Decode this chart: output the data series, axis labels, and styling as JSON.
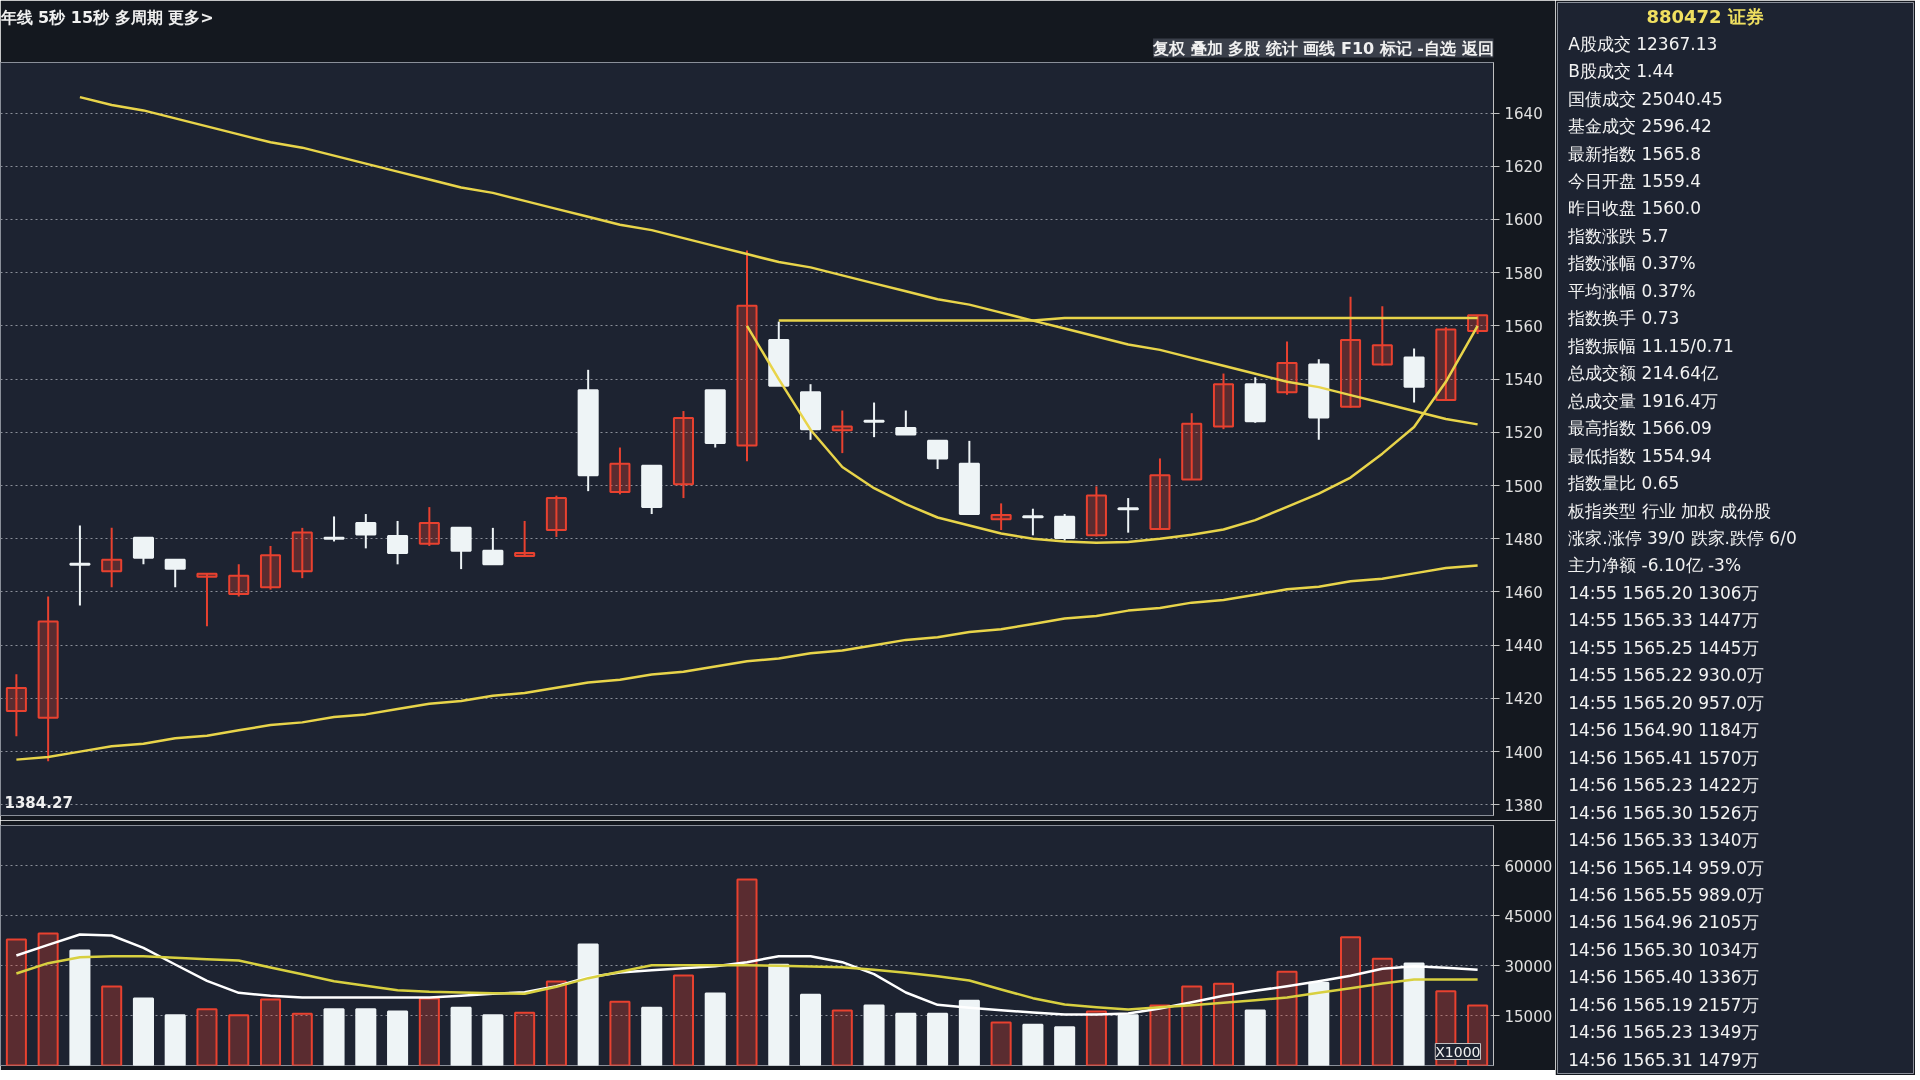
{
  "chart_data": [
    {
      "type": "candlestick",
      "annotations": [
        "年线 5秒 15秒 多周期 更多>",
        "复权 叠加 多股 统计 画线 F10 标记 -自选 返回",
        "1384.27"
      ],
      "categories": [
        null,
        null,
        null,
        null,
        null,
        null,
        null,
        null,
        null,
        null,
        null,
        null,
        null,
        null,
        null,
        null,
        null,
        null,
        null,
        null,
        null,
        null,
        null,
        null,
        null,
        null,
        null,
        null,
        null,
        null,
        null,
        null,
        null,
        null,
        null,
        null,
        null,
        null,
        null,
        null,
        null,
        null,
        null,
        null,
        null,
        null,
        null
      ],
      "ohlc": [
        [
          1415.3,
          1429.1,
          1405.8,
          1423.9
        ],
        [
          1412.7,
          1458.3,
          1396.4,
          1448.9
        ],
        [
          1470.6,
          1485.0,
          1454.9,
          1470.2
        ],
        [
          1467.8,
          1484.1,
          1461.8,
          1472.1
        ],
        [
          1480.4,
          1480.4,
          1470.4,
          1472.9
        ],
        [
          1472.1,
          1472.1,
          1461.8,
          1468.7
        ],
        [
          1465.7,
          1466.9,
          1447.1,
          1466.9
        ],
        [
          1459.2,
          1470.4,
          1458.3,
          1466.1
        ],
        [
          1461.8,
          1477.3,
          1460.9,
          1473.8
        ],
        [
          1467.8,
          1484.1,
          1465.2,
          1482.4
        ],
        [
          1480.4,
          1488.4,
          1479.0,
          1480.0
        ],
        [
          1485.9,
          1489.3,
          1476.4,
          1481.6
        ],
        [
          1481.0,
          1486.7,
          1470.4,
          1474.7
        ],
        [
          1478.1,
          1491.9,
          1477.3,
          1485.9
        ],
        [
          1484.1,
          1484.1,
          1468.6,
          1475.5
        ],
        [
          1475.5,
          1484.1,
          1470.4,
          1470.4
        ],
        [
          1473.5,
          1486.7,
          1473.5,
          1474.7
        ],
        [
          1483.3,
          1496.2,
          1480.7,
          1495.3
        ],
        [
          1535.8,
          1543.5,
          1497.9,
          1503.9
        ],
        [
          1497.6,
          1514.3,
          1496.7,
          1508.2
        ],
        [
          1507.4,
          1507.4,
          1489.3,
          1491.9
        ],
        [
          1500.5,
          1528.0,
          1495.3,
          1525.4
        ],
        [
          1535.8,
          1535.8,
          1514.3,
          1516.0
        ],
        [
          1515.1,
          1588.3,
          1509.1,
          1567.6
        ],
        [
          1554.7,
          1561.6,
          1537.5,
          1537.5
        ],
        [
          1535.1,
          1538.1,
          1517.2,
          1521.2
        ],
        [
          1520.8,
          1528.2,
          1512.2,
          1522.2
        ],
        [
          1524.4,
          1531.2,
          1518.2,
          1524.0
        ],
        [
          1521.6,
          1528.2,
          1519.2,
          1519.2
        ],
        [
          1516.8,
          1516.8,
          1506.2,
          1510.2
        ],
        [
          1508.2,
          1516.8,
          1489.3,
          1489.3
        ],
        [
          1487.3,
          1493.3,
          1483.3,
          1488.9
        ],
        [
          1488.5,
          1491.3,
          1481.3,
          1488.1
        ],
        [
          1488.3,
          1489.3,
          1479.3,
          1480.3
        ],
        [
          1481.3,
          1499.7,
          1480.9,
          1496.3
        ],
        [
          1491.5,
          1495.3,
          1482.3,
          1491.1
        ],
        [
          1483.7,
          1510.2,
          1483.3,
          1503.9
        ],
        [
          1502.3,
          1527.2,
          1502.3,
          1523.2
        ],
        [
          1522.2,
          1542.1,
          1521.2,
          1538.1
        ],
        [
          1538.1,
          1540.7,
          1523.6,
          1524.2
        ],
        [
          1535.1,
          1554.1,
          1534.1,
          1546.1
        ],
        [
          1545.5,
          1547.5,
          1517.2,
          1525.6
        ],
        [
          1529.6,
          1571.0,
          1529.2,
          1554.7
        ],
        [
          1545.5,
          1567.4,
          1545.1,
          1552.7
        ],
        [
          1548.1,
          1551.5,
          1531.2,
          1537.1
        ],
        [
          1532.2,
          1559.5,
          1532.2,
          1558.7
        ],
        [
          1558.1,
          1564.0,
          1557.0,
          1564.0
        ]
      ],
      "colors": [
        "#e8412f",
        "#e8412f",
        "#eef4f6",
        "#e8412f",
        "#eef4f6",
        "#eef4f6",
        "#e8412f",
        "#e8412f",
        "#e8412f",
        "#e8412f",
        "#eef4f6",
        "#eef4f6",
        "#eef4f6",
        "#e8412f",
        "#eef4f6",
        "#eef4f6",
        "#e8412f",
        "#e8412f",
        "#eef4f6",
        "#e8412f",
        "#eef4f6",
        "#e8412f",
        "#eef4f6",
        "#e8412f",
        "#eef4f6",
        "#eef4f6",
        "#e8412f",
        "#eef4f6",
        "#eef4f6",
        "#eef4f6",
        "#eef4f6",
        "#e8412f",
        "#eef4f6",
        "#eef4f6",
        "#e8412f",
        "#eef4f6",
        "#e8412f",
        "#e8412f",
        "#e8412f",
        "#eef4f6",
        "#e8412f",
        "#eef4f6",
        "#e8412f",
        "#e8412f",
        "#eef4f6",
        "#e8412f",
        "#e8412f"
      ],
      "series": [
        {
          "type": "line",
          "color": "#e8d44a",
          "values": [
            null,
            null,
            1646,
            1643,
            1641,
            1638,
            1635,
            1632,
            1629,
            1627,
            1624,
            1621,
            1618,
            1615,
            1612,
            1610,
            1607,
            1604,
            1601,
            1598,
            1596,
            1593,
            1590,
            1587,
            1584,
            1582,
            1579,
            1576,
            1573,
            1570,
            1568,
            1565,
            1562,
            1559,
            1556,
            1553,
            1551,
            1548,
            1545,
            1542,
            1539,
            1537,
            1534,
            1531,
            1528,
            1525,
            1523
          ]
        },
        {
          "type": "line",
          "color": "#e8d44a",
          "values": [
            1397,
            1398,
            1400,
            1402,
            1403,
            1405,
            1406,
            1408,
            1410,
            1411,
            1413,
            1414,
            1416,
            1418,
            1419,
            1421,
            1422,
            1424,
            1426,
            1427,
            1429,
            1430,
            1432,
            1434,
            1435,
            1437,
            1438,
            1440,
            1442,
            1443,
            1445,
            1446,
            1448,
            1450,
            1451,
            1453,
            1454,
            1456,
            1457,
            1459,
            1461,
            1462,
            1464,
            1465,
            1467,
            1469,
            1470
          ]
        },
        {
          "type": "line",
          "color": "#e8d44a",
          "values": [
            null,
            null,
            null,
            null,
            null,
            null,
            null,
            null,
            null,
            null,
            null,
            null,
            null,
            null,
            null,
            null,
            null,
            null,
            null,
            null,
            null,
            null,
            null,
            null,
            1562,
            1562,
            1562,
            1562,
            1562,
            1562,
            1562,
            1562,
            1562,
            1563,
            1563,
            1563,
            1563,
            1563,
            1563,
            1563,
            1563,
            1563,
            1563,
            1563,
            1563,
            1563,
            1563
          ]
        },
        {
          "type": "line",
          "color": "#e8d44a",
          "values": [
            null,
            null,
            null,
            null,
            null,
            null,
            null,
            null,
            null,
            null,
            null,
            null,
            null,
            null,
            null,
            null,
            null,
            null,
            null,
            null,
            null,
            null,
            null,
            1560,
            1540,
            1521,
            1507,
            1499,
            1493,
            1488,
            1485,
            1482,
            1480,
            1479,
            1478.5,
            1478.8,
            1480,
            1481.5,
            1483.5,
            1487,
            1492,
            1497,
            1503,
            1512,
            1522,
            1539,
            1560
          ]
        }
      ],
      "ylim": [
        1376,
        1659
      ],
      "yticks": [
        1380,
        1400,
        1420,
        1440,
        1460,
        1480,
        1500,
        1520,
        1540,
        1560,
        1580,
        1600,
        1620,
        1640
      ],
      "grid": "y"
    },
    {
      "type": "bar",
      "annotations": [
        "X1000"
      ],
      "categories": [
        null,
        null,
        null,
        null,
        null,
        null,
        null,
        null,
        null,
        null,
        null,
        null,
        null,
        null,
        null,
        null,
        null,
        null,
        null,
        null,
        null,
        null,
        null,
        null,
        null,
        null,
        null,
        null,
        null,
        null,
        null,
        null,
        null,
        null,
        null,
        null,
        null,
        null,
        null,
        null,
        null,
        null,
        null,
        null,
        null,
        null,
        null
      ],
      "series": [
        {
          "type": "bar",
          "values": [
            37800,
            39600,
            34500,
            23700,
            20100,
            15100,
            16900,
            15100,
            19800,
            15500,
            16900,
            16900,
            16200,
            20100,
            17300,
            15100,
            15800,
            25200,
            36300,
            19100,
            17300,
            27000,
            21600,
            55800,
            30200,
            21200,
            16500,
            18000,
            15500,
            15500,
            19400,
            12900,
            12200,
            11500,
            16200,
            15100,
            18000,
            23700,
            24500,
            16500,
            28100,
            24800,
            38500,
            32000,
            30600,
            22300,
            18000
          ],
          "colors": [
            "#e8412f",
            "#e8412f",
            "#eef4f6",
            "#e8412f",
            "#eef4f6",
            "#eef4f6",
            "#e8412f",
            "#e8412f",
            "#e8412f",
            "#e8412f",
            "#eef4f6",
            "#eef4f6",
            "#eef4f6",
            "#e8412f",
            "#eef4f6",
            "#eef4f6",
            "#e8412f",
            "#e8412f",
            "#eef4f6",
            "#e8412f",
            "#eef4f6",
            "#e8412f",
            "#eef4f6",
            "#e8412f",
            "#eef4f6",
            "#eef4f6",
            "#e8412f",
            "#eef4f6",
            "#eef4f6",
            "#eef4f6",
            "#eef4f6",
            "#e8412f",
            "#eef4f6",
            "#eef4f6",
            "#e8412f",
            "#eef4f6",
            "#e8412f",
            "#e8412f",
            "#e8412f",
            "#eef4f6",
            "#e8412f",
            "#eef4f6",
            "#e8412f",
            "#e8412f",
            "#eef4f6",
            "#e8412f",
            "#e8412f"
          ]
        },
        {
          "type": "line",
          "color": "#ffffff",
          "values": [
            33000,
            36200,
            39300,
            39000,
            35300,
            30300,
            25400,
            21800,
            20900,
            20400,
            20400,
            20400,
            20400,
            20400,
            20900,
            21500,
            22000,
            23800,
            26500,
            27900,
            28600,
            29200,
            29800,
            31000,
            32800,
            32800,
            31000,
            27400,
            21900,
            18200,
            17300,
            16600,
            15900,
            15300,
            15300,
            15600,
            17100,
            19000,
            20900,
            22400,
            23800,
            25300,
            26900,
            29000,
            29800,
            29300,
            28700
          ]
        },
        {
          "type": "line",
          "color": "#d8d040",
          "values": [
            27600,
            30700,
            32500,
            32800,
            32800,
            32300,
            31900,
            31500,
            29400,
            27400,
            25300,
            23900,
            22600,
            22100,
            21900,
            21700,
            21500,
            23600,
            26200,
            28100,
            30100,
            30100,
            30100,
            30100,
            29900,
            29700,
            29500,
            28700,
            27800,
            26800,
            25500,
            22800,
            20200,
            18300,
            17500,
            16800,
            17500,
            18100,
            18800,
            19600,
            20400,
            21800,
            23200,
            24600,
            25800,
            25800,
            25800
          ]
        }
      ],
      "ylim": [
        0,
        72000
      ],
      "yticks": [
        15000,
        30000,
        45000,
        60000
      ],
      "grid": "y"
    },
    {
      "type": "other",
      "title": "880472 证券",
      "annotations": [
        "A股成交 12367.13",
        "B股成交 1.44",
        "国债成交 25040.45",
        "基金成交 2596.42",
        "最新指数 1565.8",
        "今日开盘 1559.4",
        "昨日收盘 1560.0",
        "指数涨跌 5.7",
        "指数涨幅 0.37%",
        "平均涨幅 0.37%",
        "指数换手 0.73",
        "指数振幅 11.15/0.71",
        "总成交额 214.64亿",
        "总成交量 1916.4万",
        "最高指数 1566.09",
        "最低指数 1554.94",
        "指数量比 0.65",
        "板指类型 行业 加权 成份股",
        "涨家.涨停 39/0 跌家.跌停 6/0",
        "主力净额 -6.10亿 -3%",
        "14:55 1565.20 1306万",
        "14:55 1565.33 1447万",
        "14:55 1565.25 1445万",
        "14:55 1565.22 930.0万",
        "14:55 1565.20 957.0万",
        "14:56 1564.90 1184万",
        "14:56 1565.41 1570万",
        "14:56 1565.23 1422万",
        "14:56 1565.30 1526万",
        "14:56 1565.33 1340万",
        "14:56 1565.14 959.0万",
        "14:56 1565.55 989.0万",
        "14:56 1564.96 2105万",
        "14:56 1565.30 1034万",
        "14:56 1565.40 1336万",
        "14:56 1565.19 2157万",
        "14:56 1565.23 1349万",
        "14:56 1565.31 1479万"
      ]
    }
  ]
}
